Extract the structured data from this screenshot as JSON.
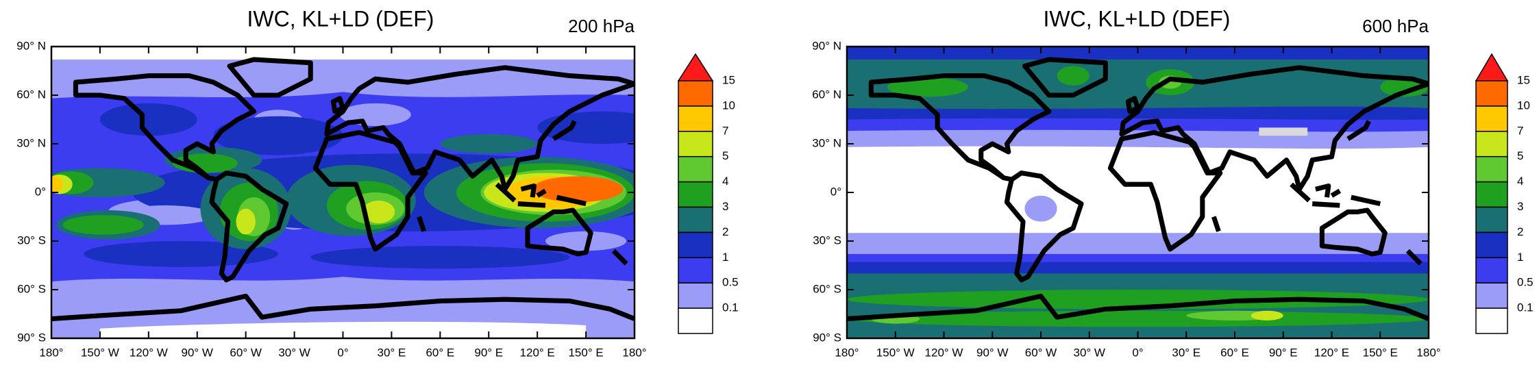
{
  "panels": [
    {
      "title": "IWC, KL+LD (DEF)",
      "level": "200 hPa",
      "xlim": [
        -180,
        180
      ],
      "ylim": [
        -90,
        90
      ],
      "xticks": [
        {
          "value": -180,
          "label": "180°"
        },
        {
          "value": -150,
          "label": "150° W"
        },
        {
          "value": -120,
          "label": "120° W"
        },
        {
          "value": -90,
          "label": "90° W"
        },
        {
          "value": -60,
          "label": "60° W"
        },
        {
          "value": -30,
          "label": "30° W"
        },
        {
          "value": 0,
          "label": "0°"
        },
        {
          "value": 30,
          "label": "30° E"
        },
        {
          "value": 60,
          "label": "60° E"
        },
        {
          "value": 90,
          "label": "90° E"
        },
        {
          "value": 120,
          "label": "120° E"
        },
        {
          "value": 150,
          "label": "150° E"
        },
        {
          "value": 180,
          "label": "180°"
        }
      ],
      "yticks": [
        {
          "value": -90,
          "label": "90° S"
        },
        {
          "value": -60,
          "label": "60° S"
        },
        {
          "value": -30,
          "label": "30° S"
        },
        {
          "value": 0,
          "label": "0°"
        },
        {
          "value": 30,
          "label": "30° N"
        },
        {
          "value": 60,
          "label": "60° N"
        },
        {
          "value": 90,
          "label": "90° N"
        }
      ],
      "colorbar": {
        "levels": [
          15,
          10,
          7,
          5,
          4,
          3,
          2,
          1,
          0.5,
          0.1
        ],
        "colors": [
          "#ff1a1a",
          "#ff6a00",
          "#ffc800",
          "#c8e619",
          "#60c830",
          "#20a020",
          "#1a6f73",
          "#1a30c0",
          "#3c3cf0",
          "#9b9bf8",
          "#ffffff"
        ]
      }
    },
    {
      "title": "IWC, KL+LD (DEF)",
      "level": "600 hPa",
      "xlim": [
        -180,
        180
      ],
      "ylim": [
        -90,
        90
      ],
      "xticks": [
        {
          "value": -180,
          "label": "180°"
        },
        {
          "value": -150,
          "label": "150° W"
        },
        {
          "value": -120,
          "label": "120° W"
        },
        {
          "value": -90,
          "label": "90° W"
        },
        {
          "value": -60,
          "label": "60° W"
        },
        {
          "value": -30,
          "label": "30° W"
        },
        {
          "value": 0,
          "label": "0°"
        },
        {
          "value": 30,
          "label": "30° E"
        },
        {
          "value": 60,
          "label": "60° E"
        },
        {
          "value": 90,
          "label": "90° E"
        },
        {
          "value": 120,
          "label": "120° E"
        },
        {
          "value": 150,
          "label": "150° E"
        },
        {
          "value": 180,
          "label": "180°"
        }
      ],
      "yticks": [
        {
          "value": -90,
          "label": "90° S"
        },
        {
          "value": -60,
          "label": "60° S"
        },
        {
          "value": -30,
          "label": "30° S"
        },
        {
          "value": 0,
          "label": "0°"
        },
        {
          "value": 30,
          "label": "30° N"
        },
        {
          "value": 60,
          "label": "60° N"
        },
        {
          "value": 90,
          "label": "90° N"
        }
      ],
      "colorbar": {
        "levels": [
          15,
          10,
          7,
          5,
          4,
          3,
          2,
          1,
          0.5,
          0.1
        ],
        "colors": [
          "#ff1a1a",
          "#ff6a00",
          "#ffc800",
          "#c8e619",
          "#60c830",
          "#20a020",
          "#1a6f73",
          "#1a30c0",
          "#3c3cf0",
          "#9b9bf8",
          "#ffffff"
        ]
      }
    }
  ]
}
